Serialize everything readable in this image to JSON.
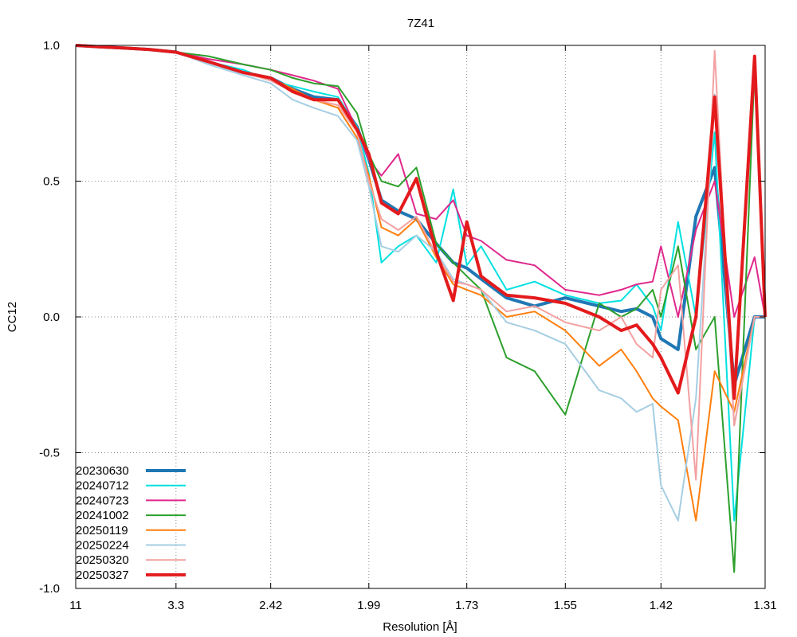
{
  "chart_data": {
    "type": "line",
    "title": "7Z41",
    "xlabel": "Resolution [Å]",
    "ylabel": "CC12",
    "ylim": [
      -1.0,
      1.0
    ],
    "x_scale": "1/d^2",
    "xlim": [
      11,
      1.31
    ],
    "x_ticks": [
      "11",
      "3.3",
      "2.42",
      "1.99",
      "1.73",
      "1.55",
      "1.42",
      "1.31"
    ],
    "y_ticks": [
      "1.0",
      "0.5",
      "0.0",
      "-0.5",
      "-1.0"
    ],
    "grid": true,
    "legend_position": "bottom-left",
    "colors": {
      "20230630": "#1f77b4",
      "20240712": "#00e0e0",
      "20240723": "#e0288c",
      "20241002": "#2ca02c",
      "20250119": "#ff7f0e",
      "20250224": "#a6cee3",
      "20250320": "#f4a0a0",
      "20250327": "#e31a1c"
    },
    "series": [
      {
        "name": "20230630",
        "x": [
          11,
          6,
          4.5,
          3.8,
          3.3,
          2.9,
          2.6,
          2.42,
          2.3,
          2.2,
          2.1,
          2.03,
          1.99,
          1.95,
          1.9,
          1.85,
          1.8,
          1.76,
          1.73,
          1.7,
          1.65,
          1.6,
          1.55,
          1.5,
          1.47,
          1.45,
          1.43,
          1.42,
          1.4,
          1.38,
          1.36,
          1.34,
          1.32,
          1.31
        ],
        "y": [
          1.0,
          0.995,
          0.99,
          0.985,
          0.975,
          0.94,
          0.9,
          0.88,
          0.84,
          0.81,
          0.8,
          0.7,
          0.58,
          0.43,
          0.39,
          0.36,
          0.27,
          0.2,
          0.18,
          0.14,
          0.07,
          0.04,
          0.07,
          0.04,
          0.02,
          0.03,
          0.0,
          -0.08,
          -0.12,
          0.37,
          0.55,
          -0.25,
          0.0,
          0.0
        ]
      },
      {
        "name": "20240712",
        "x": [
          11,
          6,
          4.5,
          3.8,
          3.3,
          2.9,
          2.6,
          2.42,
          2.3,
          2.2,
          2.1,
          2.03,
          1.99,
          1.95,
          1.9,
          1.85,
          1.8,
          1.76,
          1.73,
          1.7,
          1.65,
          1.6,
          1.55,
          1.5,
          1.47,
          1.45,
          1.43,
          1.42,
          1.4,
          1.38,
          1.36,
          1.34,
          1.32,
          1.31
        ],
        "y": [
          1.0,
          0.995,
          0.99,
          0.985,
          0.975,
          0.94,
          0.91,
          0.87,
          0.85,
          0.83,
          0.81,
          0.7,
          0.53,
          0.2,
          0.26,
          0.3,
          0.2,
          0.47,
          0.19,
          0.26,
          0.1,
          0.13,
          0.08,
          0.05,
          0.06,
          0.12,
          0.04,
          -0.05,
          0.35,
          0.0,
          0.68,
          -0.75,
          0.0,
          0.0
        ]
      },
      {
        "name": "20240723",
        "x": [
          11,
          6,
          4.5,
          3.8,
          3.3,
          2.9,
          2.6,
          2.42,
          2.3,
          2.2,
          2.1,
          2.03,
          1.99,
          1.95,
          1.9,
          1.85,
          1.8,
          1.76,
          1.73,
          1.7,
          1.65,
          1.6,
          1.55,
          1.5,
          1.47,
          1.45,
          1.43,
          1.42,
          1.4,
          1.38,
          1.36,
          1.34,
          1.32,
          1.31
        ],
        "y": [
          1.0,
          0.995,
          0.99,
          0.985,
          0.975,
          0.95,
          0.93,
          0.91,
          0.89,
          0.87,
          0.84,
          0.69,
          0.58,
          0.52,
          0.6,
          0.38,
          0.36,
          0.43,
          0.3,
          0.28,
          0.21,
          0.19,
          0.1,
          0.08,
          0.1,
          0.12,
          0.13,
          0.26,
          0.0,
          0.32,
          0.5,
          0.0,
          0.22,
          0.0
        ]
      },
      {
        "name": "20241002",
        "x": [
          11,
          6,
          4.5,
          3.8,
          3.3,
          2.9,
          2.6,
          2.42,
          2.3,
          2.2,
          2.1,
          2.03,
          1.99,
          1.95,
          1.9,
          1.85,
          1.8,
          1.76,
          1.73,
          1.7,
          1.65,
          1.6,
          1.55,
          1.5,
          1.47,
          1.45,
          1.43,
          1.42,
          1.4,
          1.38,
          1.36,
          1.34,
          1.32,
          1.31
        ],
        "y": [
          1.0,
          0.995,
          0.99,
          0.985,
          0.975,
          0.96,
          0.93,
          0.91,
          0.88,
          0.86,
          0.85,
          0.75,
          0.6,
          0.5,
          0.48,
          0.55,
          0.27,
          0.2,
          0.15,
          0.1,
          -0.15,
          -0.2,
          -0.36,
          0.05,
          0.0,
          0.03,
          0.1,
          0.0,
          0.26,
          -0.12,
          0.0,
          -0.94,
          0.92,
          0.0
        ]
      },
      {
        "name": "20250119",
        "x": [
          11,
          6,
          4.5,
          3.8,
          3.3,
          2.9,
          2.6,
          2.42,
          2.3,
          2.2,
          2.1,
          2.03,
          1.99,
          1.95,
          1.9,
          1.85,
          1.8,
          1.76,
          1.73,
          1.7,
          1.65,
          1.6,
          1.55,
          1.5,
          1.47,
          1.45,
          1.43,
          1.42,
          1.4,
          1.38,
          1.36,
          1.34,
          1.32,
          1.31
        ],
        "y": [
          1.0,
          0.995,
          0.99,
          0.985,
          0.975,
          0.94,
          0.9,
          0.88,
          0.84,
          0.8,
          0.77,
          0.66,
          0.52,
          0.33,
          0.3,
          0.36,
          0.22,
          0.12,
          0.1,
          0.08,
          0.0,
          0.02,
          -0.05,
          -0.18,
          -0.12,
          -0.2,
          -0.3,
          -0.33,
          -0.38,
          -0.75,
          -0.2,
          -0.35,
          0.0,
          0.0
        ]
      },
      {
        "name": "20250224",
        "x": [
          11,
          6,
          4.5,
          3.8,
          3.3,
          2.9,
          2.6,
          2.42,
          2.3,
          2.2,
          2.1,
          2.03,
          1.99,
          1.95,
          1.9,
          1.85,
          1.8,
          1.76,
          1.73,
          1.7,
          1.65,
          1.6,
          1.55,
          1.5,
          1.47,
          1.45,
          1.43,
          1.42,
          1.4,
          1.38,
          1.36,
          1.34,
          1.32,
          1.31
        ],
        "y": [
          1.0,
          0.995,
          0.99,
          0.985,
          0.975,
          0.93,
          0.89,
          0.86,
          0.8,
          0.77,
          0.74,
          0.65,
          0.48,
          0.26,
          0.24,
          0.3,
          0.24,
          0.14,
          0.12,
          0.1,
          -0.02,
          -0.05,
          -0.1,
          -0.27,
          -0.3,
          -0.35,
          -0.32,
          -0.62,
          -0.75,
          -0.3,
          0.82,
          -0.4,
          0.0,
          0.0
        ]
      },
      {
        "name": "20250320",
        "x": [
          11,
          6,
          4.5,
          3.8,
          3.3,
          2.9,
          2.6,
          2.42,
          2.3,
          2.2,
          2.1,
          2.03,
          1.99,
          1.95,
          1.9,
          1.85,
          1.8,
          1.76,
          1.73,
          1.7,
          1.65,
          1.6,
          1.55,
          1.5,
          1.47,
          1.45,
          1.43,
          1.42,
          1.4,
          1.38,
          1.36,
          1.34,
          1.32,
          1.31
        ],
        "y": [
          1.0,
          0.995,
          0.99,
          0.985,
          0.975,
          0.94,
          0.9,
          0.87,
          0.83,
          0.8,
          0.78,
          0.68,
          0.5,
          0.36,
          0.32,
          0.37,
          0.23,
          0.13,
          0.12,
          0.1,
          0.02,
          0.04,
          -0.02,
          -0.05,
          0.0,
          -0.1,
          -0.15,
          0.1,
          0.19,
          -0.6,
          0.98,
          -0.4,
          0.0,
          0.0
        ]
      },
      {
        "name": "20250327",
        "x": [
          11,
          6,
          4.5,
          3.8,
          3.3,
          2.9,
          2.6,
          2.42,
          2.3,
          2.2,
          2.1,
          2.03,
          1.99,
          1.95,
          1.9,
          1.85,
          1.8,
          1.76,
          1.73,
          1.7,
          1.65,
          1.6,
          1.55,
          1.5,
          1.47,
          1.45,
          1.43,
          1.42,
          1.4,
          1.38,
          1.36,
          1.34,
          1.32,
          1.31
        ],
        "y": [
          1.0,
          0.995,
          0.99,
          0.985,
          0.975,
          0.94,
          0.9,
          0.88,
          0.83,
          0.8,
          0.8,
          0.69,
          0.6,
          0.42,
          0.38,
          0.51,
          0.24,
          0.06,
          0.35,
          0.15,
          0.08,
          0.07,
          0.05,
          0.0,
          -0.05,
          -0.03,
          -0.1,
          -0.15,
          -0.28,
          0.0,
          0.81,
          -0.3,
          0.96,
          0.0
        ]
      }
    ]
  }
}
